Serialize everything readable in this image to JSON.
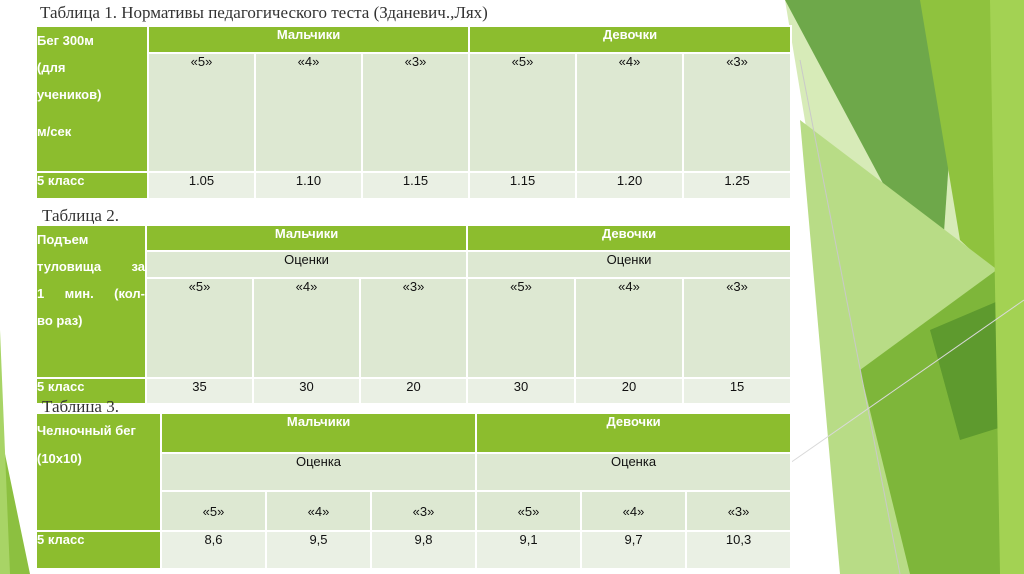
{
  "table1": {
    "caption": "Таблица 1. Нормативы педагогического теста (Зданевич.,Лях)",
    "side_lines": [
      "Бег 300м",
      "(для",
      "учеников)",
      "м/сек"
    ],
    "boys": "Мальчики",
    "girls": "Девочки",
    "grades": [
      "«5»",
      "«4»",
      "«3»",
      "«5»",
      "«4»",
      "«3»"
    ],
    "row_label": "5 класс",
    "values": [
      "1.05",
      "1.10",
      "1.15",
      "1.15",
      "1.20",
      "1.25"
    ]
  },
  "table2": {
    "caption": "Таблица 2.",
    "side_lines": [
      "Подъем",
      "туловища за",
      "1 мин. (кол-",
      "во раз)"
    ],
    "boys": "Мальчики",
    "girls": "Девочки",
    "grades_label_boys": "Оценки",
    "grades_label_girls": "Оценки",
    "grades": [
      "«5»",
      "«4»",
      "«3»",
      "«5»",
      "«4»",
      "«3»"
    ],
    "row_label": "5 класс",
    "values": [
      "35",
      "30",
      "20",
      "30",
      "20",
      "15"
    ]
  },
  "table3": {
    "caption": "Таблица 3.",
    "side_lines": [
      "Челночный бег",
      "(10х10)"
    ],
    "boys": "Мальчики",
    "girls": "Девочки",
    "grades_label_boys": "Оценка",
    "grades_label_girls": "Оценка",
    "grades": [
      "«5»",
      "«4»",
      "«3»",
      "«5»",
      "«4»",
      "«3»"
    ],
    "row_label": "5 класс",
    "values": [
      "8,6",
      "9,5",
      "9,8",
      "9,1",
      "9,7",
      "10,3"
    ]
  }
}
